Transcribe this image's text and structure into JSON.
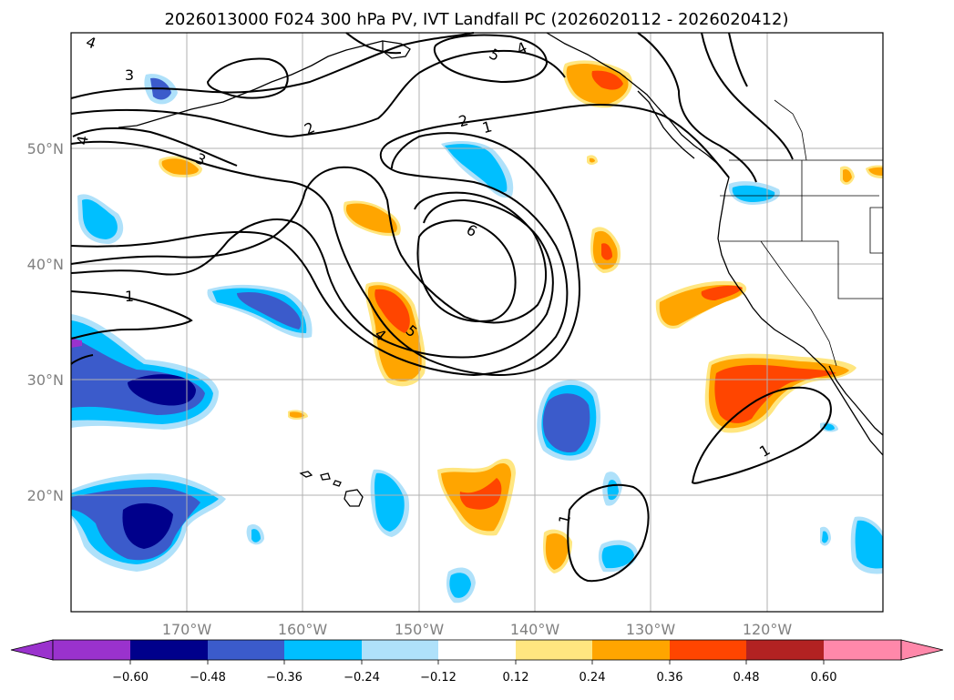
{
  "title": "2026013000 F024 300 hPa PV, IVT Landfall PC (2026020112 - 2026020412)",
  "colors": {
    "neg_060": "#9a32cd",
    "neg_048": "#00008b",
    "neg_036": "#3b5bcb",
    "neg_024": "#00bfff",
    "neg_012": "#afe1fa",
    "zero": "#ffffff",
    "pos_012": "#ffe680",
    "pos_024": "#ffa500",
    "pos_036": "#ff4500",
    "pos_048": "#b22222",
    "pos_060": "#ff88aa"
  },
  "longitude_labels": [
    "170°W",
    "160°W",
    "150°W",
    "140°W",
    "130°W",
    "120°W"
  ],
  "latitude_labels": [
    "50°N",
    "40°N",
    "30°N",
    "20°N"
  ],
  "colorbar_ticks": [
    "−0.60",
    "−0.48",
    "−0.36",
    "−0.24",
    "−0.12",
    "0.12",
    "0.24",
    "0.36",
    "0.48",
    "0.60"
  ],
  "contour_labels": {
    "c1": "4",
    "c2": "3",
    "c3": "4",
    "c4": "2",
    "c5": "5",
    "c6": "4",
    "c7": "2",
    "c8": "1",
    "c9": "3",
    "c10": "6",
    "c11": "1",
    "c12": "4",
    "c13": "5",
    "c14": "1",
    "c15": "1"
  }
}
